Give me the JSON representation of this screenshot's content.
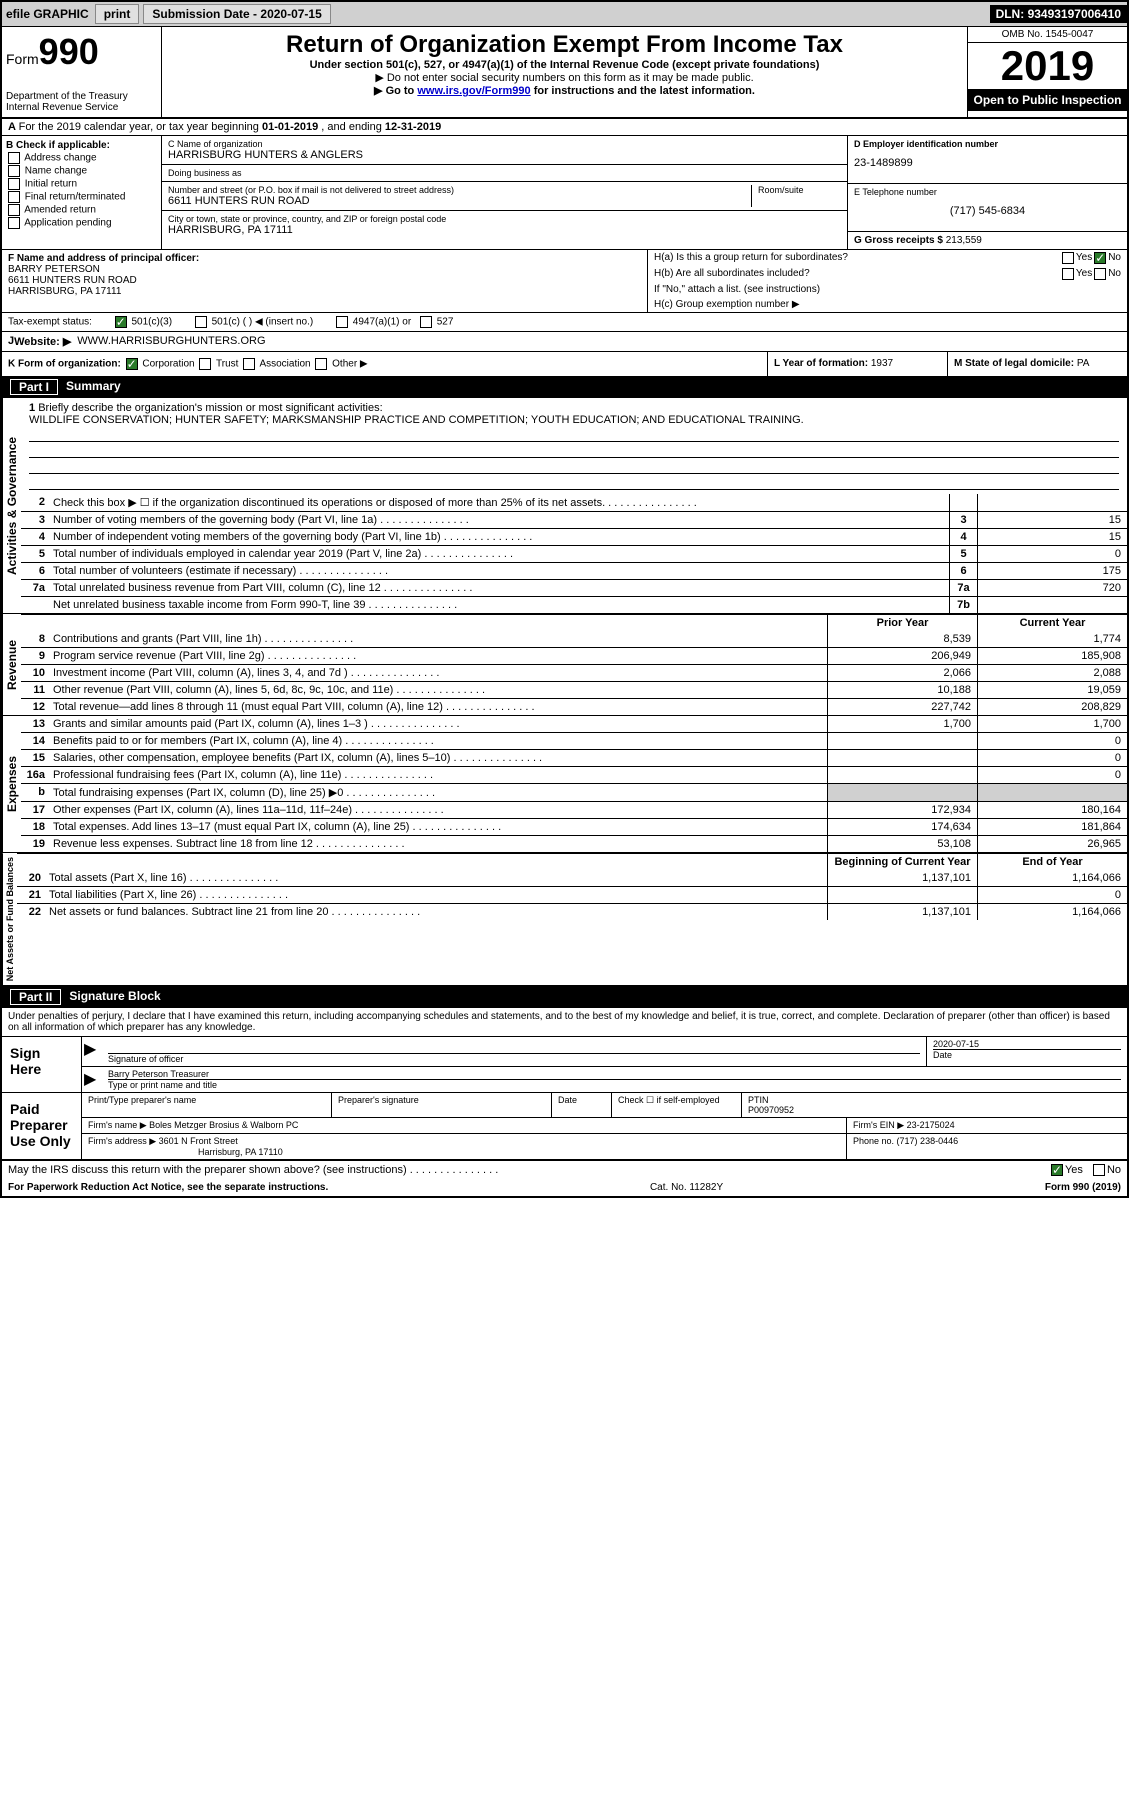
{
  "topbar": {
    "efile": "efile GRAPHIC",
    "print": "print",
    "subdate_lbl": "Submission Date - ",
    "subdate": "2020-07-15",
    "dln_lbl": "DLN: ",
    "dln": "93493197006410"
  },
  "header": {
    "form": "Form",
    "form_no": "990",
    "dept": "Department of the Treasury\nInternal Revenue Service",
    "title": "Return of Organization Exempt From Income Tax",
    "sub1": "Under section 501(c), 527, or 4947(a)(1) of the Internal Revenue Code (except private foundations)",
    "sub2": "▶ Do not enter social security numbers on this form as it may be made public.",
    "sub3_pre": "▶ Go to ",
    "sub3_link": "www.irs.gov/Form990",
    "sub3_post": " for instructions and the latest information.",
    "omb": "OMB No. 1545-0047",
    "year": "2019",
    "public": "Open to Public Inspection"
  },
  "period": {
    "text_pre": "For the 2019 calendar year, or tax year beginning ",
    "begin": "01-01-2019",
    "text_mid": " , and ending ",
    "end": "12-31-2019"
  },
  "checkB": {
    "hdr": "B Check if applicable:",
    "addr": "Address change",
    "name": "Name change",
    "init": "Initial return",
    "final": "Final return/terminated",
    "amend": "Amended return",
    "app": "Application pending"
  },
  "org": {
    "name_lbl": "C Name of organization",
    "name": "HARRISBURG HUNTERS & ANGLERS",
    "dba_lbl": "Doing business as",
    "dba": "",
    "addr_lbl": "Number and street (or P.O. box if mail is not delivered to street address)",
    "room_lbl": "Room/suite",
    "addr": "6611 HUNTERS RUN ROAD",
    "city_lbl": "City or town, state or province, country, and ZIP or foreign postal code",
    "city": "HARRISBURG, PA  17111"
  },
  "right": {
    "ein_lbl": "D Employer identification number",
    "ein": "23-1489899",
    "tel_lbl": "E Telephone number",
    "tel": "(717) 545-6834",
    "gross_lbl": "G Gross receipts $ ",
    "gross": "213,559"
  },
  "officer": {
    "lbl": "F  Name and address of principal officer:",
    "name": "BARRY PETERSON",
    "addr1": "6611 HUNTERS RUN ROAD",
    "addr2": "HARRISBURG, PA  17111"
  },
  "H": {
    "ha_lbl": "H(a)  Is this a group return for subordinates?",
    "yes": "Yes",
    "no": "No",
    "hb_lbl": "H(b)  Are all subordinates included?",
    "hb_note": "If \"No,\" attach a list. (see instructions)",
    "hc_lbl": "H(c)  Group exemption number ▶"
  },
  "status": {
    "lbl": "Tax-exempt status:",
    "c3": "501(c)(3)",
    "c": "501(c) (  ) ◀ (insert no.)",
    "a1": "4947(a)(1) or",
    "s527": "527"
  },
  "website": {
    "lbl": "Website: ▶",
    "val": "WWW.HARRISBURGHUNTERS.ORG"
  },
  "korg": {
    "lbl": "K Form of organization:",
    "corp": "Corporation",
    "trust": "Trust",
    "assoc": "Association",
    "other": "Other ▶",
    "year_lbl": "L Year of formation: ",
    "year": "1937",
    "state_lbl": "M State of legal domicile: ",
    "state": "PA"
  },
  "part1": {
    "num": "Part I",
    "title": "Summary"
  },
  "mission": {
    "num": "1",
    "lbl": "Briefly describe the organization's mission or most significant activities:",
    "text": "WILDLIFE CONSERVATION; HUNTER SAFETY; MARKSMANSHIP PRACTICE AND COMPETITION; YOUTH EDUCATION; AND EDUCATIONAL TRAINING."
  },
  "side": {
    "ag": "Activities & Governance",
    "rev": "Revenue",
    "exp": "Expenses",
    "net": "Net Assets or Fund Balances"
  },
  "lines_ag": [
    {
      "n": "2",
      "d": "Check this box ▶ ☐ if the organization discontinued its operations or disposed of more than 25% of its net assets.",
      "b": "",
      "v": ""
    },
    {
      "n": "3",
      "d": "Number of voting members of the governing body (Part VI, line 1a)",
      "b": "3",
      "v": "15"
    },
    {
      "n": "4",
      "d": "Number of independent voting members of the governing body (Part VI, line 1b)",
      "b": "4",
      "v": "15"
    },
    {
      "n": "5",
      "d": "Total number of individuals employed in calendar year 2019 (Part V, line 2a)",
      "b": "5",
      "v": "0"
    },
    {
      "n": "6",
      "d": "Total number of volunteers (estimate if necessary)",
      "b": "6",
      "v": "175"
    },
    {
      "n": "7a",
      "d": "Total unrelated business revenue from Part VIII, column (C), line 12",
      "b": "7a",
      "v": "720"
    },
    {
      "n": "",
      "d": "Net unrelated business taxable income from Form 990-T, line 39",
      "b": "7b",
      "v": ""
    }
  ],
  "colhdr": {
    "py": "Prior Year",
    "cy": "Current Year"
  },
  "lines_rev": [
    {
      "n": "8",
      "d": "Contributions and grants (Part VIII, line 1h)",
      "py": "8,539",
      "cy": "1,774"
    },
    {
      "n": "9",
      "d": "Program service revenue (Part VIII, line 2g)",
      "py": "206,949",
      "cy": "185,908"
    },
    {
      "n": "10",
      "d": "Investment income (Part VIII, column (A), lines 3, 4, and 7d )",
      "py": "2,066",
      "cy": "2,088"
    },
    {
      "n": "11",
      "d": "Other revenue (Part VIII, column (A), lines 5, 6d, 8c, 9c, 10c, and 11e)",
      "py": "10,188",
      "cy": "19,059"
    },
    {
      "n": "12",
      "d": "Total revenue—add lines 8 through 11 (must equal Part VIII, column (A), line 12)",
      "py": "227,742",
      "cy": "208,829"
    }
  ],
  "lines_exp": [
    {
      "n": "13",
      "d": "Grants and similar amounts paid (Part IX, column (A), lines 1–3 )",
      "py": "1,700",
      "cy": "1,700"
    },
    {
      "n": "14",
      "d": "Benefits paid to or for members (Part IX, column (A), line 4)",
      "py": "",
      "cy": "0"
    },
    {
      "n": "15",
      "d": "Salaries, other compensation, employee benefits (Part IX, column (A), lines 5–10)",
      "py": "",
      "cy": "0"
    },
    {
      "n": "16a",
      "d": "Professional fundraising fees (Part IX, column (A), line 11e)",
      "py": "",
      "cy": "0"
    },
    {
      "n": "b",
      "d": "Total fundraising expenses (Part IX, column (D), line 25) ▶0",
      "py": "shade",
      "cy": "shade"
    },
    {
      "n": "17",
      "d": "Other expenses (Part IX, column (A), lines 11a–11d, 11f–24e)",
      "py": "172,934",
      "cy": "180,164"
    },
    {
      "n": "18",
      "d": "Total expenses. Add lines 13–17 (must equal Part IX, column (A), line 25)",
      "py": "174,634",
      "cy": "181,864"
    },
    {
      "n": "19",
      "d": "Revenue less expenses. Subtract line 18 from line 12",
      "py": "53,108",
      "cy": "26,965"
    }
  ],
  "colhdr2": {
    "py": "Beginning of Current Year",
    "cy": "End of Year"
  },
  "lines_net": [
    {
      "n": "20",
      "d": "Total assets (Part X, line 16)",
      "py": "1,137,101",
      "cy": "1,164,066"
    },
    {
      "n": "21",
      "d": "Total liabilities (Part X, line 26)",
      "py": "",
      "cy": "0"
    },
    {
      "n": "22",
      "d": "Net assets or fund balances. Subtract line 21 from line 20",
      "py": "1,137,101",
      "cy": "1,164,066"
    }
  ],
  "part2": {
    "num": "Part II",
    "title": "Signature Block"
  },
  "sig_intro": "Under penalties of perjury, I declare that I have examined this return, including accompanying schedules and statements, and to the best of my knowledge and belief, it is true, correct, and complete. Declaration of preparer (other than officer) is based on all information of which preparer has any knowledge.",
  "sign": {
    "here": "Sign Here",
    "sig_lbl": "Signature of officer",
    "date": "2020-07-15",
    "date_lbl": "Date",
    "name": "Barry Peterson  Treasurer",
    "name_lbl": "Type or print name and title"
  },
  "paid": {
    "here": "Paid Preparer Use Only",
    "pname_lbl": "Print/Type preparer's name",
    "psig_lbl": "Preparer's signature",
    "pdate_lbl": "Date",
    "check_lbl": "Check ☐ if self-employed",
    "ptin_lbl": "PTIN",
    "ptin": "P00970952",
    "firm_lbl": "Firm's name    ▶ ",
    "firm": "Boles Metzger Brosius & Walborn PC",
    "fein_lbl": "Firm's EIN ▶ ",
    "fein": "23-2175024",
    "faddr_lbl": "Firm's address ▶ ",
    "faddr1": "3601 N Front Street",
    "faddr2": "Harrisburg, PA  17110",
    "phone_lbl": "Phone no. ",
    "phone": "(717) 238-0446"
  },
  "discuss": {
    "q": "May the IRS discuss this return with the preparer shown above? (see instructions)",
    "yes": "Yes",
    "no": "No"
  },
  "footer": {
    "left": "For Paperwork Reduction Act Notice, see the separate instructions.",
    "mid": "Cat. No. 11282Y",
    "right": "Form 990 (2019)"
  }
}
